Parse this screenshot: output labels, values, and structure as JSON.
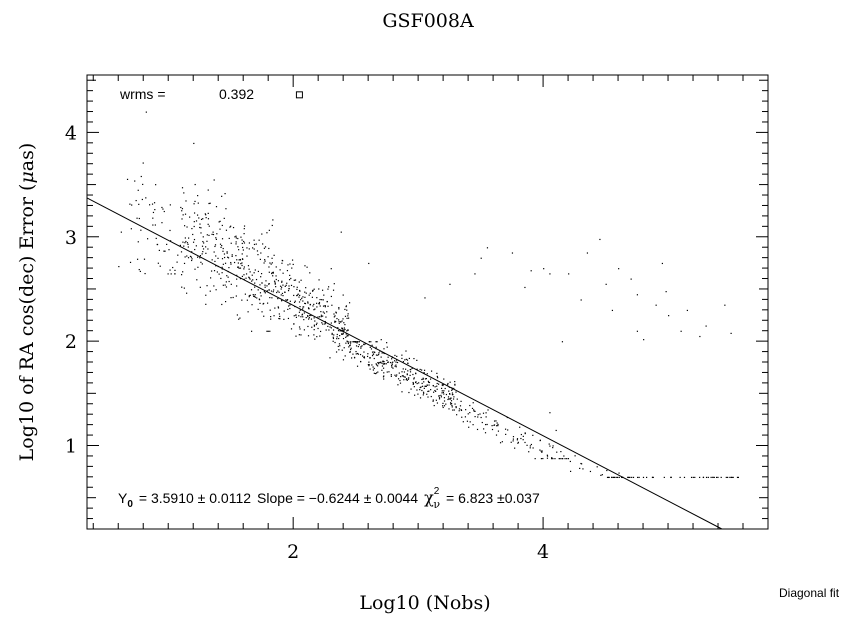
{
  "chart_data": {
    "type": "scatter",
    "title": "GSF008A",
    "xlabel": "Log10 (Nobs)",
    "ylabel_main": "Log10 of RA cos(dec) Error (",
    "ylabel_mu": "μ",
    "ylabel_tail": "as)",
    "corner_note": "Diagonal fit",
    "xlim": [
      0.35,
      5.8
    ],
    "ylim": [
      0.2,
      4.55
    ],
    "x_ticks": [
      2,
      4
    ],
    "y_ticks": [
      1,
      2,
      3,
      4
    ],
    "x_tick_labels": [
      "2",
      "4"
    ],
    "y_tick_labels": [
      "1",
      "2",
      "3",
      "4"
    ],
    "grid": false,
    "wrms": {
      "label": "wrms =",
      "value": "0.392",
      "marker": {
        "x": 2.05,
        "y": 4.36
      }
    },
    "fit": {
      "y0_label": "Y",
      "y0_sub": "0",
      "y0_text": "=   3.5910 ± 0.0112",
      "slope_text": "Slope = −0.6244 ± 0.0044",
      "chi_symbol": "χ",
      "chi_sup": "2",
      "chi_sub": "ν",
      "chi_text": "=   6.823 ±0.037",
      "y0": 3.591,
      "slope": -0.6244
    },
    "clusters": [
      {
        "x0": 0.65,
        "x1": 1.1,
        "ymin": 2.65,
        "ymax": 4.1,
        "offset": 0.0,
        "sigma": 0.38,
        "n": 60
      },
      {
        "x0": 1.1,
        "x1": 1.85,
        "ymin": 2.1,
        "ymax": 3.7,
        "offset": 0.15,
        "sigma": 0.35,
        "n": 330
      },
      {
        "x0": 1.85,
        "x1": 2.45,
        "ymin": 1.65,
        "ymax": 2.8,
        "offset": 0.05,
        "sigma": 0.22,
        "n": 300
      },
      {
        "x0": 2.45,
        "x1": 3.3,
        "ymin": 1.2,
        "ymax": 2.0,
        "offset": -0.08,
        "sigma": 0.12,
        "n": 330
      },
      {
        "x0": 3.3,
        "x1": 4.2,
        "ymin": 0.88,
        "ymax": 1.45,
        "offset": -0.15,
        "sigma": 0.1,
        "n": 110
      },
      {
        "x0": 4.2,
        "x1": 5.6,
        "ymin": 0.7,
        "ymax": 1.05,
        "offset": -0.1,
        "sigma": 0.06,
        "n": 70
      }
    ],
    "outliers": [
      [
        0.6,
        2.72
      ],
      [
        0.62,
        3.05
      ],
      [
        0.75,
        2.79
      ],
      [
        1.5,
        2.55
      ],
      [
        2.3,
        2.7
      ],
      [
        2.38,
        3.05
      ],
      [
        2.6,
        2.75
      ],
      [
        2.7,
        2.02
      ],
      [
        3.05,
        2.42
      ],
      [
        3.25,
        2.55
      ],
      [
        3.45,
        2.65
      ],
      [
        3.5,
        2.8
      ],
      [
        3.55,
        2.9
      ],
      [
        3.75,
        2.85
      ],
      [
        3.85,
        2.52
      ],
      [
        3.9,
        2.68
      ],
      [
        4.0,
        2.7
      ],
      [
        4.05,
        2.65
      ],
      [
        4.15,
        2.0
      ],
      [
        4.2,
        2.65
      ],
      [
        4.3,
        2.4
      ],
      [
        4.35,
        2.85
      ],
      [
        4.45,
        2.98
      ],
      [
        4.5,
        2.55
      ],
      [
        4.55,
        2.3
      ],
      [
        4.6,
        2.7
      ],
      [
        4.7,
        2.6
      ],
      [
        4.75,
        2.45
      ],
      [
        4.75,
        2.1
      ],
      [
        4.8,
        2.02
      ],
      [
        4.9,
        2.35
      ],
      [
        4.95,
        2.75
      ],
      [
        4.98,
        2.48
      ],
      [
        5.0,
        2.25
      ],
      [
        5.1,
        2.1
      ],
      [
        5.15,
        2.3
      ],
      [
        5.25,
        2.05
      ],
      [
        5.3,
        2.15
      ],
      [
        5.45,
        2.35
      ],
      [
        5.5,
        2.08
      ],
      [
        0.82,
        4.2
      ],
      [
        1.2,
        3.9
      ],
      [
        4.05,
        1.32
      ],
      [
        4.1,
        1.15
      ],
      [
        4.05,
        1.0
      ]
    ]
  }
}
